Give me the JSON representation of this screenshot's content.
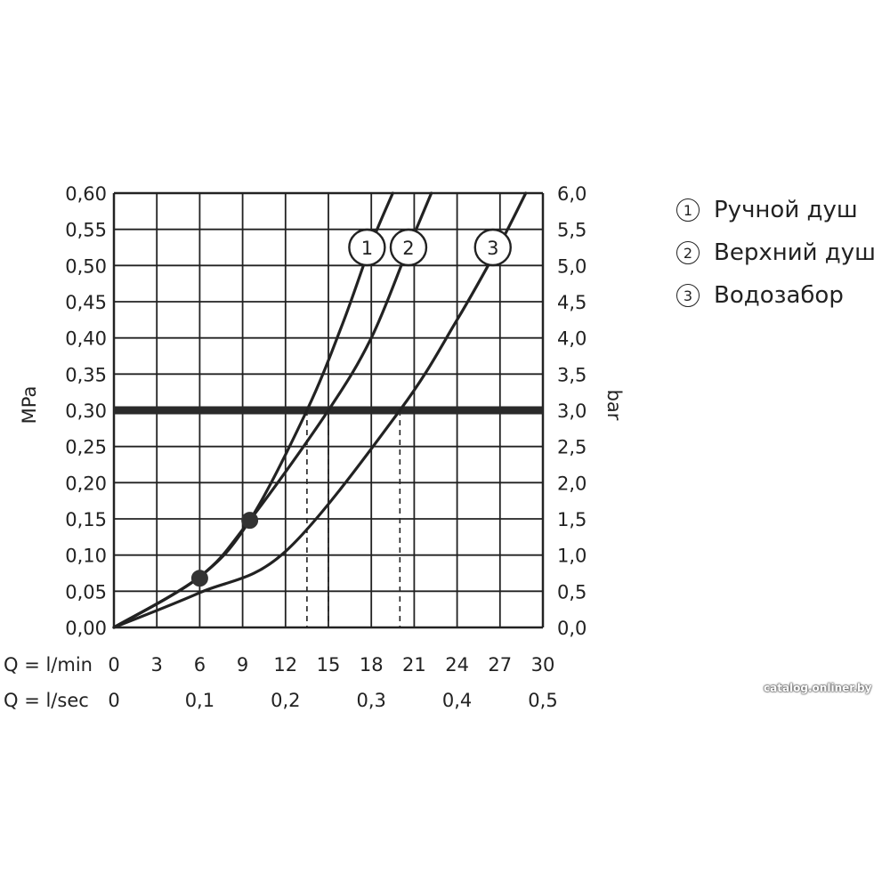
{
  "chart_data": {
    "type": "line",
    "ylabel_left": "MPa",
    "ylabel_right": "bar",
    "x_row_labels": [
      "Q = l/min",
      "Q = l/sec"
    ],
    "xlim": [
      0,
      30
    ],
    "ylim": [
      0,
      0.6
    ],
    "x_ticks_lmin": [
      "0",
      "3",
      "6",
      "9",
      "12",
      "15",
      "18",
      "21",
      "24",
      "27",
      "30"
    ],
    "x_ticks_lsec": [
      {
        "x": 0,
        "label": "0"
      },
      {
        "x": 6,
        "label": "0,1"
      },
      {
        "x": 12,
        "label": "0,2"
      },
      {
        "x": 18,
        "label": "0,3"
      },
      {
        "x": 24,
        "label": "0,4"
      },
      {
        "x": 30,
        "label": "0,5"
      }
    ],
    "y_ticks_left": [
      "0,00",
      "0,05",
      "0,10",
      "0,15",
      "0,20",
      "0,25",
      "0,30",
      "0,35",
      "0,40",
      "0,45",
      "0,50",
      "0,55",
      "0,60"
    ],
    "y_ticks_right": [
      "0,0",
      "0,5",
      "1,0",
      "1,5",
      "2,0",
      "2,5",
      "3,0",
      "3,5",
      "4,0",
      "4,5",
      "5,0",
      "5,5",
      "6,0"
    ],
    "grid": true,
    "reference_line": {
      "y": 0.3
    },
    "series": [
      {
        "id": "1",
        "label": "1",
        "x": [
          0,
          6,
          9.5,
          13.5,
          16,
          18,
          19.5
        ],
        "y": [
          0,
          0.07,
          0.148,
          0.3,
          0.42,
          0.53,
          0.6
        ]
      },
      {
        "id": "2",
        "label": "2",
        "x": [
          0,
          6,
          9.5,
          15,
          18,
          20.5,
          22.2
        ],
        "y": [
          0,
          0.07,
          0.148,
          0.3,
          0.4,
          0.52,
          0.6
        ]
      },
      {
        "id": "3",
        "label": "3",
        "x": [
          0,
          6,
          12,
          20,
          24,
          27,
          28.8
        ],
        "y": [
          0,
          0.048,
          0.105,
          0.3,
          0.425,
          0.53,
          0.6
        ]
      }
    ],
    "markers": [
      {
        "x": 6,
        "y": 0.068
      },
      {
        "x": 9.5,
        "y": 0.148
      }
    ],
    "dashed_drops": [
      {
        "x": 13.5,
        "y": 0.3
      },
      {
        "x": 15,
        "y": 0.3
      },
      {
        "x": 20,
        "y": 0.3
      }
    ],
    "curve_labels": [
      {
        "label": "1",
        "x": 17.7,
        "y": 0.525
      },
      {
        "label": "2",
        "x": 20.6,
        "y": 0.525
      },
      {
        "label": "3",
        "x": 26.5,
        "y": 0.525
      }
    ]
  },
  "legend": [
    {
      "num": "1",
      "label": "Ручной душ"
    },
    {
      "num": "2",
      "label": "Верхний душ"
    },
    {
      "num": "3",
      "label": "Водозабор"
    }
  ],
  "watermark": "catalog.onliner.by",
  "colors": {
    "ink": "#222222",
    "background": "#ffffff"
  }
}
